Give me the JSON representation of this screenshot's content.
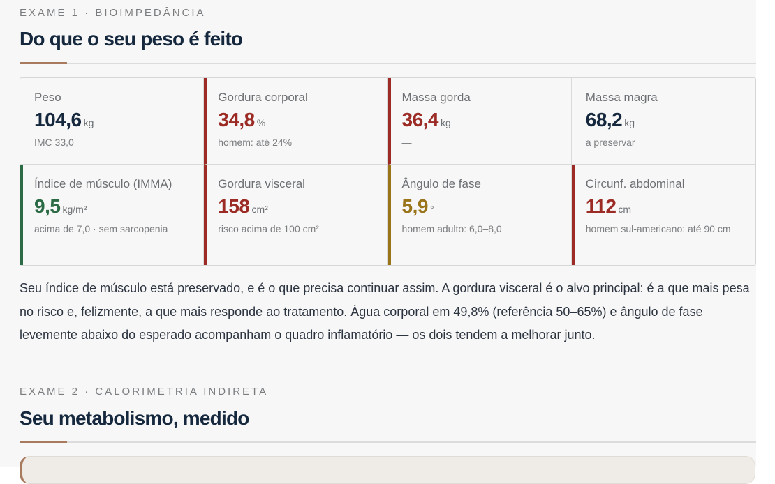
{
  "exam1": {
    "eyebrow": "EXAME 1 · BIOIMPEDÂNCIA",
    "title": "Do que o seu peso é feito",
    "metrics": [
      {
        "label": "Peso",
        "value": "104,6",
        "unit": "kg",
        "note": "IMC 33,0"
      },
      {
        "label": "Gordura corporal",
        "value": "34,8",
        "unit": "%",
        "note": "homem: até 24%"
      },
      {
        "label": "Massa gorda",
        "value": "36,4",
        "unit": "kg",
        "note": "—"
      },
      {
        "label": "Massa magra",
        "value": "68,2",
        "unit": "kg",
        "note": "a preservar"
      },
      {
        "label": "Índice de músculo (IMMA)",
        "value": "9,5",
        "unit": "kg/m²",
        "note": "acima de 7,0 · sem sarcopenia"
      },
      {
        "label": "Gordura visceral",
        "value": "158",
        "unit": "cm²",
        "note": "risco acima de 100 cm²"
      },
      {
        "label": "Ângulo de fase",
        "value": "5,9",
        "unit": "°",
        "note": "homem adulto: 6,0–8,0"
      },
      {
        "label": "Circunf. abdominal",
        "value": "112",
        "unit": "cm",
        "note": "homem sul-americano: até 90 cm"
      }
    ],
    "paragraph": "Seu índice de músculo está preservado, e é o que precisa continuar assim. A gordura visceral é o alvo principal: é a que mais pesa no risco e, felizmente, a que mais responde ao tratamento. Água corporal em 49,8% (referência 50–65%) e ângulo de fase levemente abaixo do esperado acompanham o quadro inflamatório — os dois tendem a melhorar junto."
  },
  "exam2": {
    "eyebrow": "EXAME 2 · CALORIMETRIA INDIRETA",
    "title": "Seu metabolismo, medido"
  },
  "colors": {
    "navy": "#15283e",
    "red": "#9b2b24",
    "green": "#2c6b46",
    "amber": "#9a7419",
    "accent": "#a87a5e"
  }
}
